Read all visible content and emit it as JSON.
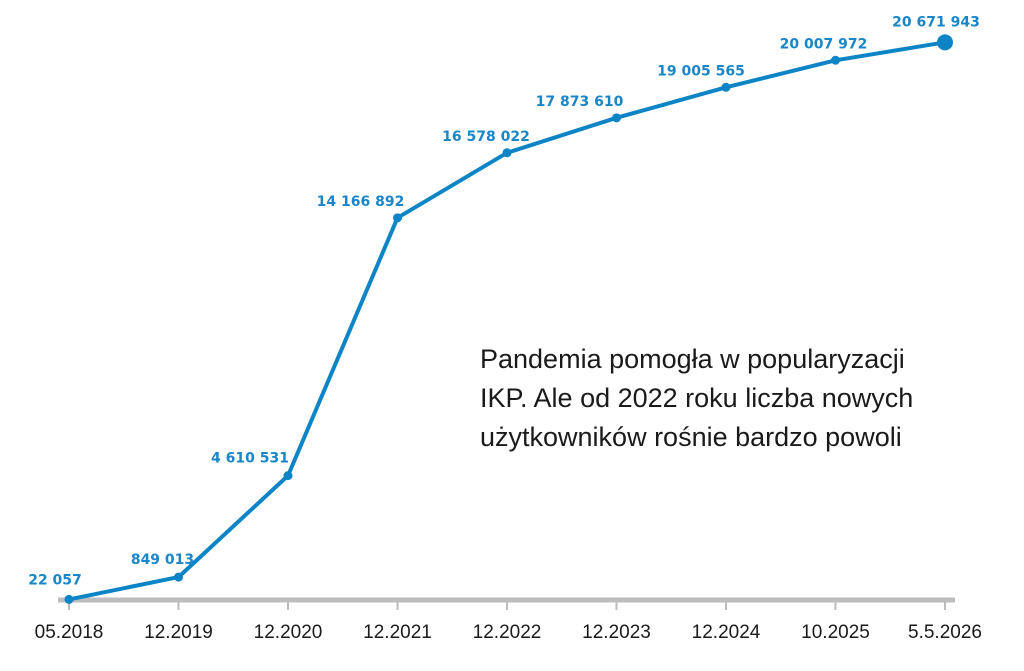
{
  "chart_data": {
    "type": "line",
    "title": "",
    "xlabel": "",
    "ylabel": "",
    "x": [
      "05.2018",
      "12.2019",
      "12.2020",
      "12.2021",
      "12.2022",
      "12.2023",
      "12.2024",
      "10.2025",
      "5.5.2026"
    ],
    "series": [
      {
        "values": [
          22057,
          849013,
          4610531,
          14166892,
          16578022,
          17873610,
          19005565,
          20007972,
          20671943
        ],
        "labels": [
          "22 057",
          "849 013",
          "4 610 531",
          "14 166 892",
          "16 578 022",
          "17 873 610",
          "19 005 565",
          "20 007 972",
          "20 671 943"
        ]
      }
    ],
    "ylim": [
      0,
      21500000
    ],
    "grid": false,
    "annotation": {
      "lines": [
        "Pandemia pomogła w popularyzacji",
        "IKP. Ale od 2022 roku liczba nowych",
        "użytkowników rośnie bardzo powoli"
      ]
    },
    "colors": {
      "line": "#0c84c6",
      "label": "#1a86c8",
      "axis": "#bdbdbd",
      "text": "#1a1a1a"
    }
  }
}
